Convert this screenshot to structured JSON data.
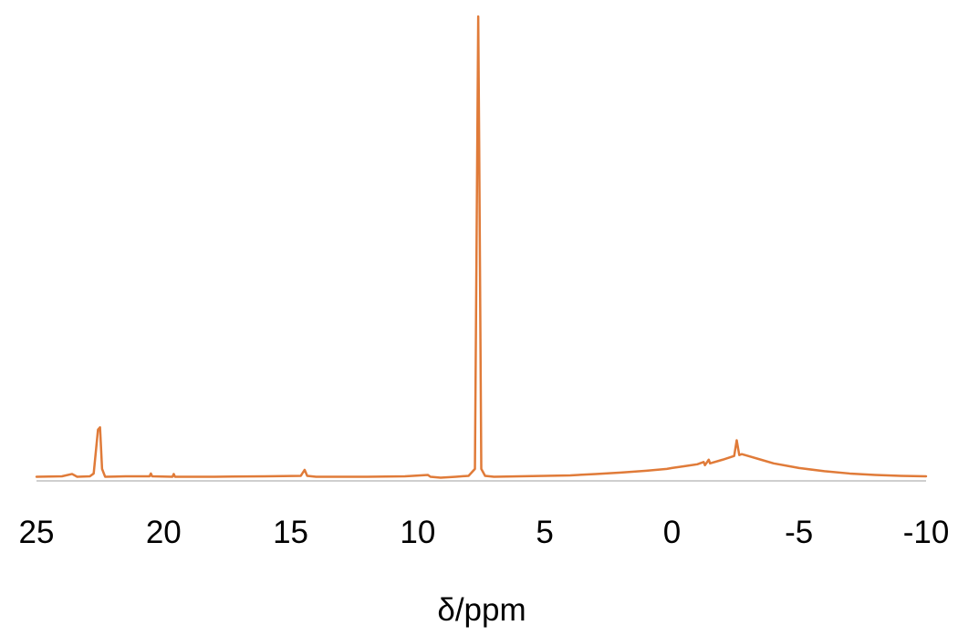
{
  "chart_data": {
    "type": "line",
    "title": "",
    "xlabel": "δ/ppm",
    "ylabel": "",
    "xlim": [
      25,
      -10
    ],
    "x_reversed": true,
    "x_ticks": [
      25,
      20,
      15,
      10,
      5,
      0,
      -5,
      -10
    ],
    "x_tick_labels": [
      "25",
      "20",
      "15",
      "10",
      "5",
      "0",
      "-5",
      "-10"
    ],
    "ylim": [
      0,
      100
    ],
    "y_axis_visible": false,
    "grid": false,
    "colors": {
      "series": "#E07B39",
      "baseline": "#bfbfbf"
    },
    "series": [
      {
        "name": "",
        "points": [
          [
            25.0,
            0.3
          ],
          [
            24.0,
            0.4
          ],
          [
            23.6,
            0.9
          ],
          [
            23.4,
            0.3
          ],
          [
            22.9,
            0.4
          ],
          [
            22.75,
            1.0
          ],
          [
            22.58,
            10.5
          ],
          [
            22.5,
            11.0
          ],
          [
            22.42,
            2.0
          ],
          [
            22.3,
            0.3
          ],
          [
            21.5,
            0.4
          ],
          [
            20.55,
            0.4
          ],
          [
            20.5,
            1.0
          ],
          [
            20.45,
            0.4
          ],
          [
            19.65,
            0.3
          ],
          [
            19.6,
            0.9
          ],
          [
            19.55,
            0.3
          ],
          [
            18.0,
            0.3
          ],
          [
            16.0,
            0.4
          ],
          [
            14.6,
            0.5
          ],
          [
            14.45,
            1.8
          ],
          [
            14.35,
            0.5
          ],
          [
            14.0,
            0.3
          ],
          [
            12.0,
            0.3
          ],
          [
            10.5,
            0.4
          ],
          [
            9.6,
            0.7
          ],
          [
            9.5,
            0.3
          ],
          [
            9.1,
            0.1
          ],
          [
            8.5,
            0.3
          ],
          [
            8.0,
            0.5
          ],
          [
            7.75,
            2.0
          ],
          [
            7.66,
            70.0
          ],
          [
            7.62,
            100.0
          ],
          [
            7.58,
            70.0
          ],
          [
            7.5,
            2.0
          ],
          [
            7.35,
            0.5
          ],
          [
            7.0,
            0.3
          ],
          [
            6.0,
            0.4
          ],
          [
            5.0,
            0.5
          ],
          [
            4.0,
            0.6
          ],
          [
            3.0,
            0.9
          ],
          [
            2.0,
            1.2
          ],
          [
            1.0,
            1.6
          ],
          [
            0.2,
            2.0
          ],
          [
            0.0,
            2.2
          ],
          [
            -0.5,
            2.6
          ],
          [
            -1.0,
            3.0
          ],
          [
            -1.25,
            3.5
          ],
          [
            -1.3,
            2.8
          ],
          [
            -1.45,
            4.0
          ],
          [
            -1.5,
            3.2
          ],
          [
            -2.0,
            4.0
          ],
          [
            -2.45,
            4.8
          ],
          [
            -2.55,
            8.2
          ],
          [
            -2.65,
            5.0
          ],
          [
            -2.75,
            5.2
          ],
          [
            -3.0,
            4.8
          ],
          [
            -3.5,
            4.0
          ],
          [
            -4.0,
            3.2
          ],
          [
            -5.0,
            2.2
          ],
          [
            -6.0,
            1.5
          ],
          [
            -7.0,
            1.0
          ],
          [
            -8.0,
            0.7
          ],
          [
            -9.0,
            0.5
          ],
          [
            -10.0,
            0.4
          ]
        ]
      }
    ]
  }
}
